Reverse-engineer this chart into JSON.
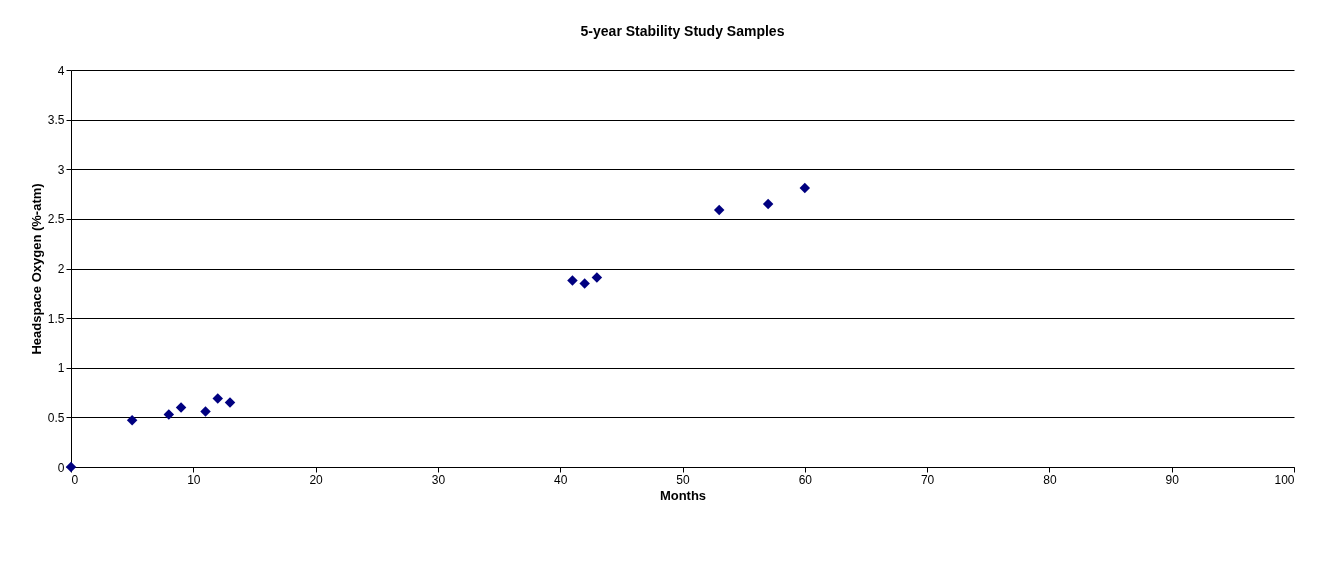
{
  "chart_data": {
    "type": "scatter",
    "title": "5-year Stability Study Samples",
    "xlabel": "Months",
    "ylabel": "Headspace Oxygen (%-atm)",
    "x": [
      0,
      5,
      8,
      9,
      11,
      12,
      13,
      41,
      42,
      43,
      53,
      57,
      60
    ],
    "series": [
      {
        "color": "#000080",
        "values": [
          0,
          0.47,
          0.53,
          0.6,
          0.56,
          0.69,
          0.65,
          1.88,
          1.85,
          1.91,
          2.59,
          2.65,
          2.81
        ]
      }
    ],
    "xlim": [
      0,
      100
    ],
    "xticks": [
      0,
      10,
      20,
      30,
      40,
      50,
      60,
      70,
      80,
      90,
      100
    ],
    "ylim": [
      0,
      4
    ],
    "yticks": [
      0,
      0.5,
      1,
      1.5,
      2,
      2.5,
      3,
      3.5,
      4
    ],
    "grid": "y",
    "marker": "diamond",
    "legend": false
  }
}
